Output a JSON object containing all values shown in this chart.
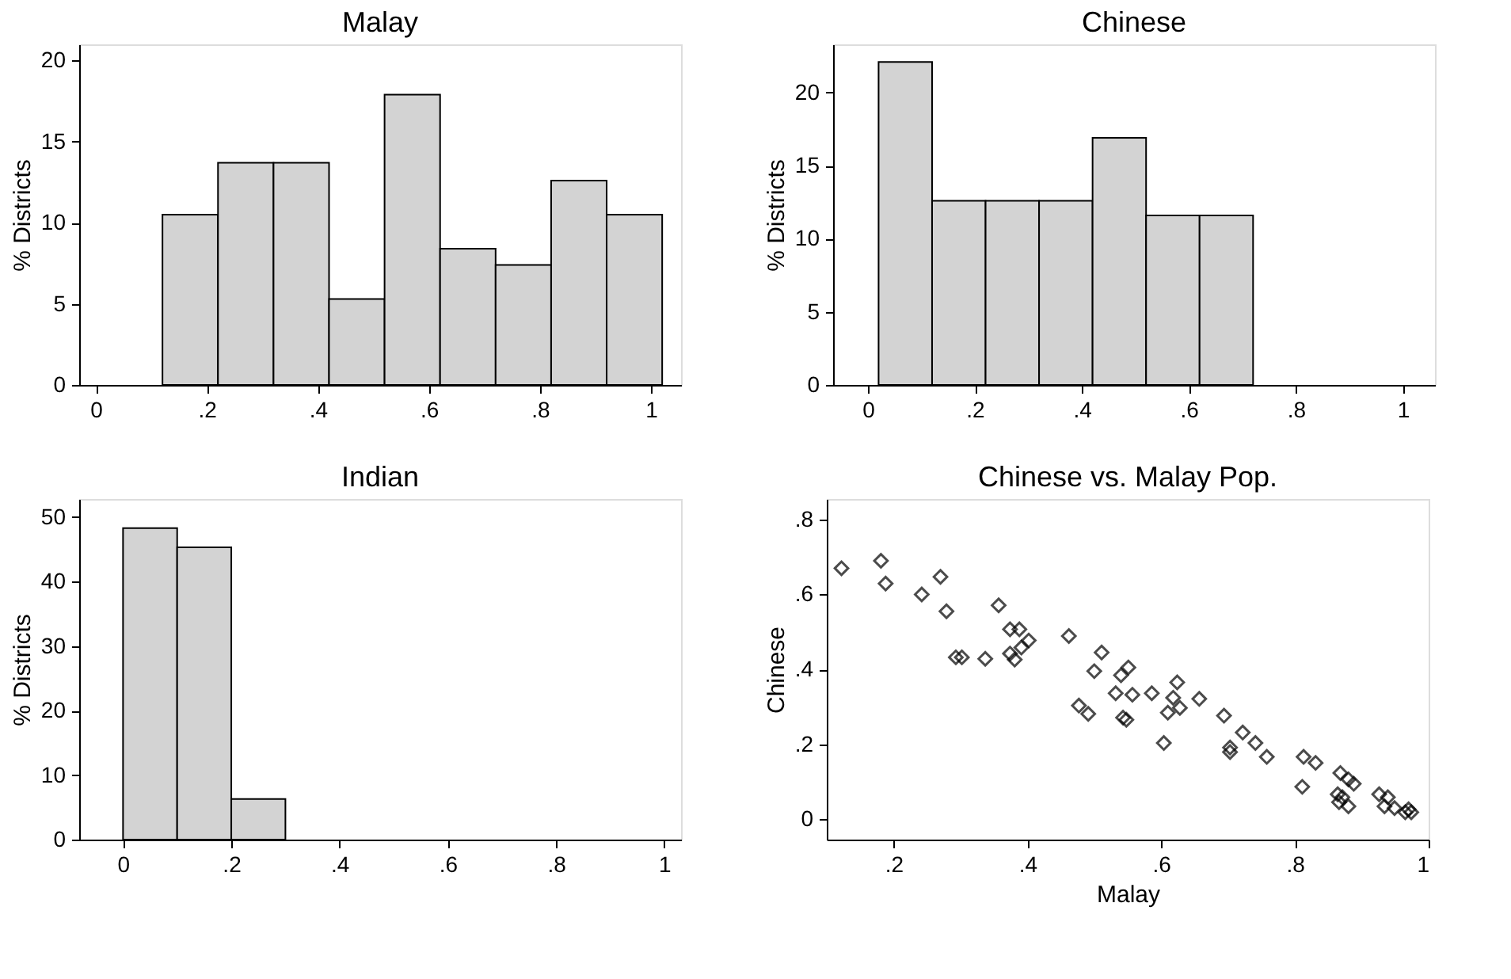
{
  "chart_data": [
    {
      "type": "histogram",
      "title": "Malay",
      "ylabel": "% Districts",
      "color": "#d3d3d3",
      "grid": false,
      "bins": [
        0.12,
        0.22,
        0.32,
        0.42,
        0.52,
        0.62,
        0.72,
        0.82,
        0.92,
        1.02
      ],
      "values": [
        10.5,
        13.7,
        13.7,
        5.3,
        17.9,
        8.4,
        7.4,
        12.6,
        10.5
      ],
      "xlim": [
        -0.03,
        1.054
      ],
      "xticks": [
        {
          "value": 0,
          "label": "0"
        },
        {
          "value": 0.2,
          "label": ".2"
        },
        {
          "value": 0.4,
          "label": ".4"
        },
        {
          "value": 0.6,
          "label": ".6"
        },
        {
          "value": 0.8,
          "label": ".8"
        },
        {
          "value": 1,
          "label": "1"
        }
      ],
      "ylim": [
        0,
        21
      ],
      "yticks": [
        0,
        5,
        10,
        15,
        20
      ]
    },
    {
      "type": "histogram",
      "title": "Chinese",
      "ylabel": "% Districts",
      "color": "#d3d3d3",
      "grid": false,
      "bins": [
        0.02,
        0.12,
        0.22,
        0.32,
        0.42,
        0.52,
        0.62,
        0.72
      ],
      "values": [
        22.1,
        12.6,
        12.6,
        12.6,
        16.9,
        11.6,
        11.6
      ],
      "xlim": [
        -0.065,
        1.06
      ],
      "xticks": [
        {
          "value": 0,
          "label": "0"
        },
        {
          "value": 0.2,
          "label": ".2"
        },
        {
          "value": 0.4,
          "label": ".4"
        },
        {
          "value": 0.6,
          "label": ".6"
        },
        {
          "value": 0.8,
          "label": ".8"
        },
        {
          "value": 1,
          "label": "1"
        }
      ],
      "ylim": [
        0,
        23.3
      ],
      "yticks": [
        0,
        5,
        10,
        15,
        20
      ]
    },
    {
      "type": "histogram",
      "title": "Indian",
      "ylabel": "% Districts",
      "color": "#d3d3d3",
      "grid": false,
      "bins": [
        0,
        0.1,
        0.2,
        0.3
      ],
      "values": [
        48.3,
        45.3,
        6.3
      ],
      "xlim": [
        -0.081,
        1.031
      ],
      "xticks": [
        {
          "value": 0,
          "label": "0"
        },
        {
          "value": 0.2,
          "label": ".2"
        },
        {
          "value": 0.4,
          "label": ".4"
        },
        {
          "value": 0.6,
          "label": ".6"
        },
        {
          "value": 0.8,
          "label": ".8"
        },
        {
          "value": 1,
          "label": "1"
        }
      ],
      "ylim": [
        0,
        52.8
      ],
      "yticks": [
        0,
        10,
        20,
        30,
        40,
        50
      ]
    },
    {
      "type": "scatter",
      "title": "Chinese vs. Malay Pop.",
      "xlabel": "Malay",
      "ylabel": "Chinese",
      "color": "#000000",
      "marker": "diamond",
      "grid": false,
      "x": [
        0.122,
        0.181,
        0.188,
        0.242,
        0.27,
        0.279,
        0.293,
        0.302,
        0.337,
        0.357,
        0.374,
        0.388,
        0.374,
        0.381,
        0.391,
        0.402,
        0.462,
        0.477,
        0.491,
        0.5,
        0.511,
        0.532,
        0.54,
        0.551,
        0.557,
        0.543,
        0.548,
        0.586,
        0.604,
        0.61,
        0.618,
        0.624,
        0.628,
        0.657,
        0.694,
        0.703,
        0.703,
        0.722,
        0.741,
        0.758,
        0.813,
        0.831,
        0.811,
        0.868,
        0.88,
        0.888,
        0.864,
        0.871,
        0.866,
        0.88,
        0.926,
        0.939,
        0.934,
        0.949,
        0.965,
        0.974,
        0.97
      ],
      "values": [
        0.67,
        0.69,
        0.629,
        0.6,
        0.647,
        0.555,
        0.432,
        0.432,
        0.428,
        0.571,
        0.507,
        0.507,
        0.442,
        0.426,
        0.458,
        0.477,
        0.489,
        0.303,
        0.281,
        0.395,
        0.445,
        0.336,
        0.384,
        0.405,
        0.332,
        0.271,
        0.265,
        0.336,
        0.203,
        0.284,
        0.324,
        0.365,
        0.297,
        0.321,
        0.276,
        0.191,
        0.179,
        0.231,
        0.203,
        0.166,
        0.166,
        0.15,
        0.086,
        0.123,
        0.106,
        0.094,
        0.066,
        0.058,
        0.045,
        0.034,
        0.066,
        0.058,
        0.034,
        0.029,
        0.018,
        0.018,
        0.026
      ],
      "xlim": [
        0.1,
        1.0
      ],
      "xticks": [
        {
          "value": 0.2,
          "label": ".2"
        },
        {
          "value": 0.4,
          "label": ".4"
        },
        {
          "value": 0.6,
          "label": ".6"
        },
        {
          "value": 0.8,
          "label": ".8"
        },
        {
          "value": 1,
          "label": "1"
        }
      ],
      "ylim": [
        -0.055,
        0.855
      ],
      "yticks": [
        {
          "value": 0,
          "label": "0"
        },
        {
          "value": 0.2,
          "label": ".2"
        },
        {
          "value": 0.4,
          "label": ".4"
        },
        {
          "value": 0.6,
          "label": ".6"
        },
        {
          "value": 0.8,
          "label": ".8"
        }
      ]
    }
  ]
}
